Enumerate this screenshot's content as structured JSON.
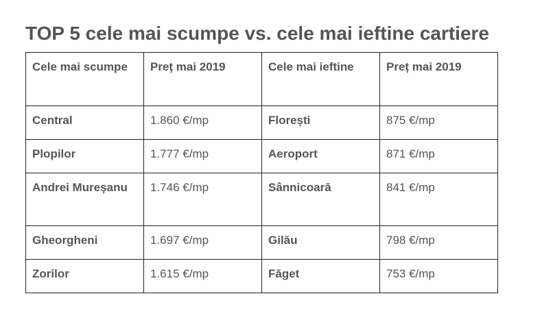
{
  "title": "TOP 5 cele mai scumpe vs. cele mai ieftine cartiere",
  "table": {
    "headers": [
      "Cele mai scumpe",
      "Preț mai 2019",
      "Cele mai ieftine",
      "Preț mai 2019"
    ],
    "rows": [
      [
        "Central",
        "1.860 €/mp",
        "Florești",
        "875 €/mp"
      ],
      [
        "Plopilor",
        "1.777 €/mp",
        "Aeroport",
        "871 €/mp"
      ],
      [
        "Andrei Mureșanu",
        "1.746 €/mp",
        "Sânnicoară",
        "841 €/mp"
      ],
      [
        "Gheorgheni",
        "1.697 €/mp",
        "Gilău",
        "798 €/mp"
      ],
      [
        "Zorilor",
        "1.615 €/mp",
        "Făget",
        "753 €/mp"
      ]
    ]
  }
}
